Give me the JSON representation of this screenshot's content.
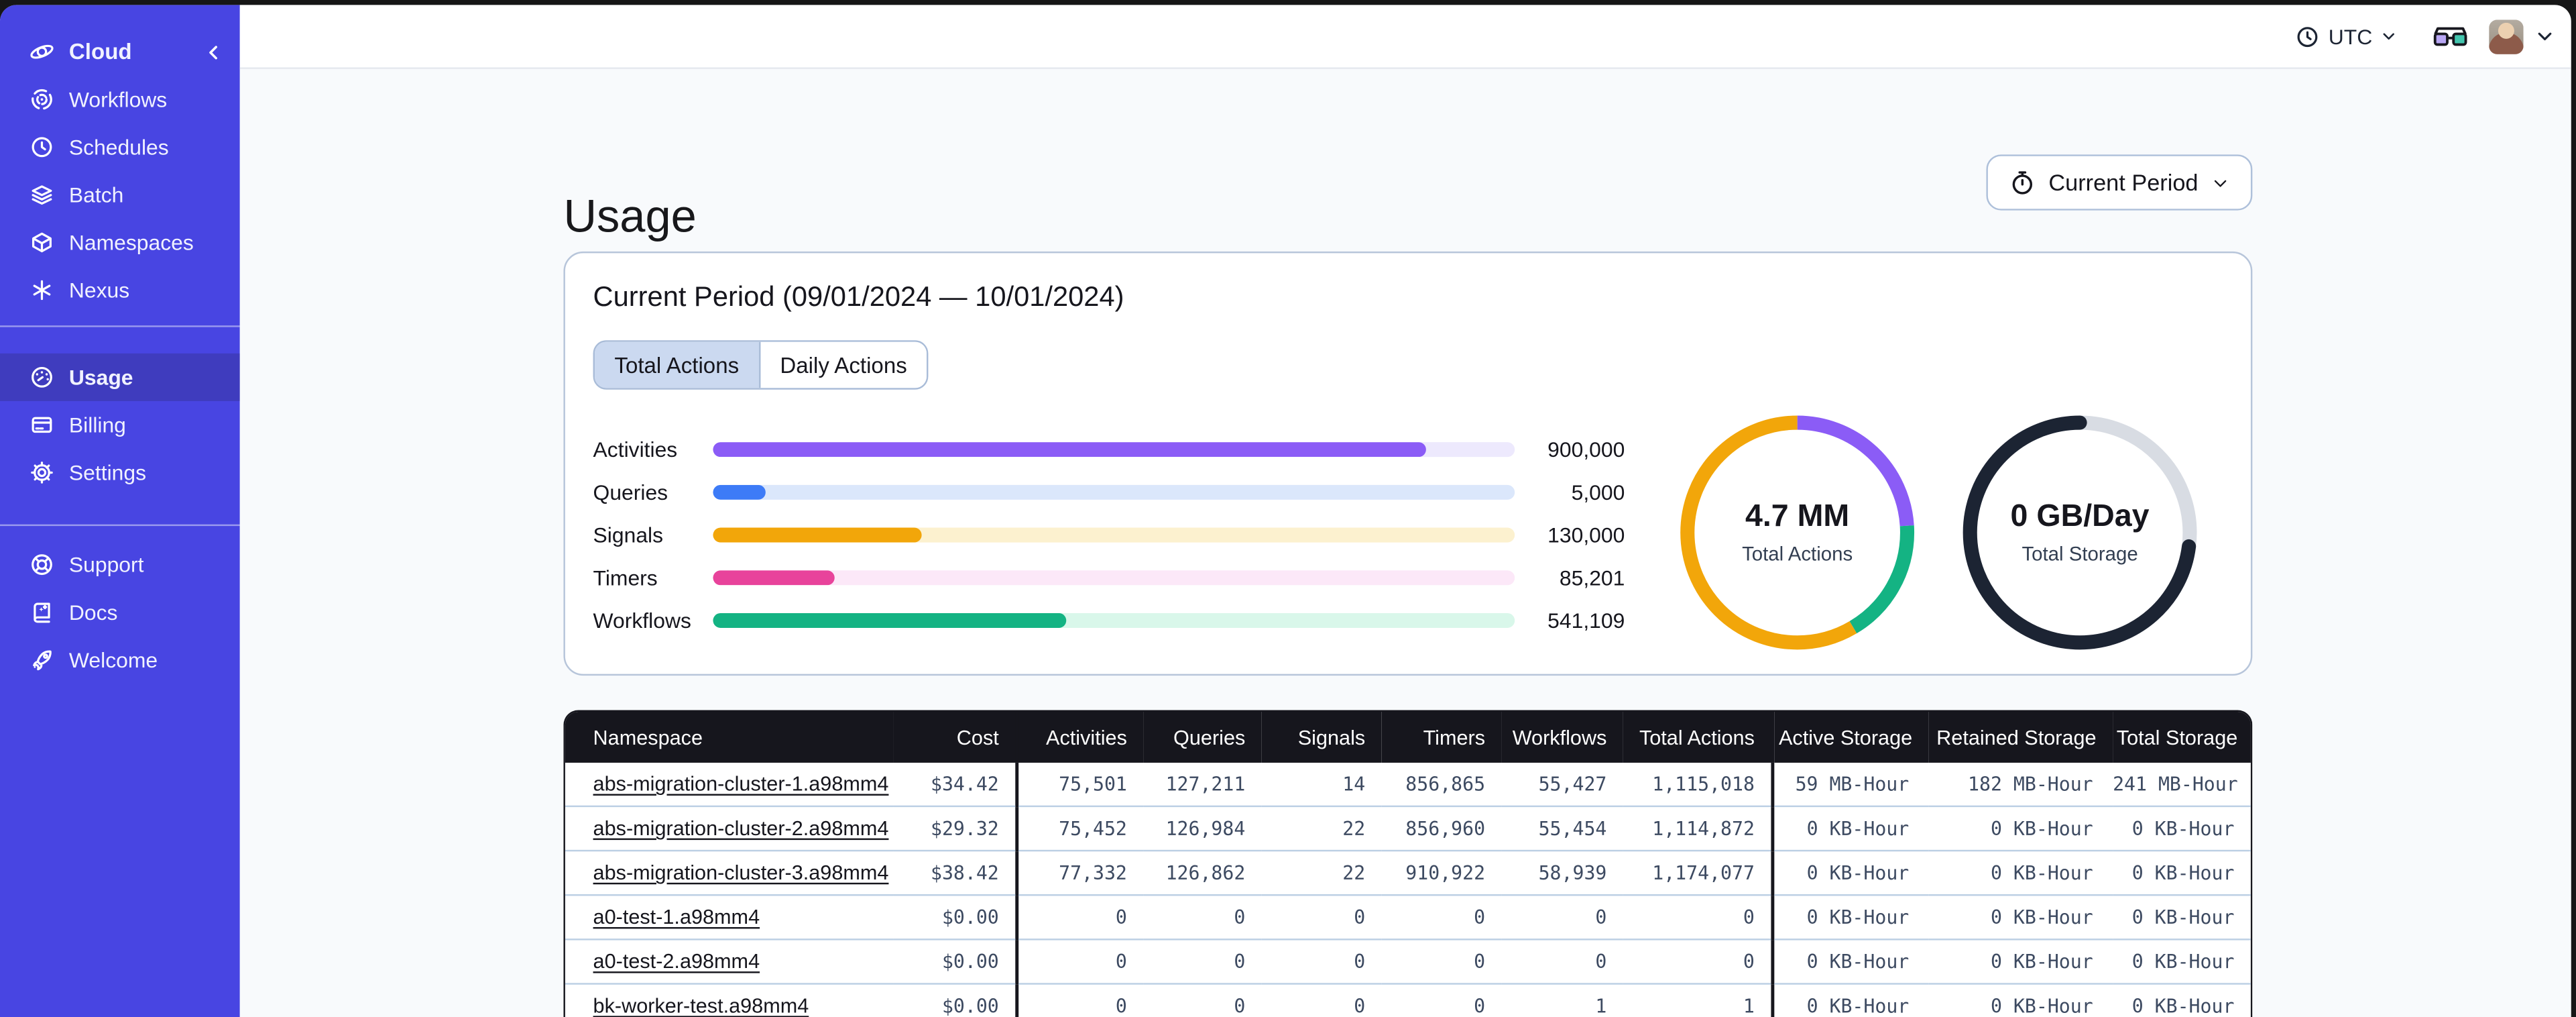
{
  "topbar": {
    "timezone_label": "UTC"
  },
  "sidebar": {
    "brand": {
      "label": "Cloud"
    },
    "nav_main": [
      {
        "icon": "workflows-icon",
        "label": "Workflows"
      },
      {
        "icon": "schedules-icon",
        "label": "Schedules"
      },
      {
        "icon": "batch-icon",
        "label": "Batch"
      },
      {
        "icon": "namespaces-icon",
        "label": "Namespaces"
      },
      {
        "icon": "nexus-icon",
        "label": "Nexus"
      }
    ],
    "nav_account": [
      {
        "icon": "usage-icon",
        "label": "Usage",
        "active": true
      },
      {
        "icon": "billing-icon",
        "label": "Billing",
        "active": false
      },
      {
        "icon": "settings-icon",
        "label": "Settings",
        "active": false
      }
    ],
    "nav_help": [
      {
        "icon": "support-icon",
        "label": "Support"
      },
      {
        "icon": "docs-icon",
        "label": "Docs"
      },
      {
        "icon": "welcome-icon",
        "label": "Welcome"
      }
    ],
    "colors": {
      "background": "#4845E2",
      "active_item": "#3F3CBE"
    }
  },
  "page": {
    "title": "Usage",
    "period_button_label": "Current Period"
  },
  "usage_card": {
    "title": "Current Period (09/01/2024 — 10/01/2024)",
    "tabs": [
      {
        "label": "Total Actions",
        "active": true
      },
      {
        "label": "Daily Actions",
        "active": false
      }
    ]
  },
  "chart_data": [
    {
      "type": "bar",
      "orientation": "horizontal",
      "categories": [
        "Activities",
        "Queries",
        "Signals",
        "Timers",
        "Workflows"
      ],
      "values": [
        900000,
        5000,
        130000,
        85201,
        541109
      ],
      "value_labels": [
        "900,000",
        "5,000",
        "130,000",
        "85,201",
        "541,109"
      ],
      "percent_filled": [
        89,
        6.5,
        26,
        15.2,
        44
      ],
      "bar_colors": [
        "#8B5CF6",
        "#3D7BF7",
        "#F2A60A",
        "#E8439B",
        "#14B383"
      ],
      "track_colors": [
        "#EDE9FD",
        "#DBE7FB",
        "#FCF1CF",
        "#FCE8F8",
        "#D9F7EA"
      ],
      "grid": false,
      "legend": false
    },
    {
      "type": "donut",
      "center_value": "4.7 MM",
      "center_label": "Total Actions",
      "segments": [
        {
          "label": "segment-purple",
          "fraction": 0.24,
          "color": "#8B5CF6"
        },
        {
          "label": "segment-green",
          "fraction": 0.175,
          "color": "#14B383"
        },
        {
          "label": "segment-orange",
          "fraction": 0.585,
          "color": "#F2A60A"
        }
      ]
    },
    {
      "type": "donut",
      "center_value": "0 GB/Day",
      "center_label": "Total Storage",
      "segments": [
        {
          "label": "segment-remaining",
          "fraction": 0.27,
          "color": "#D8DCE3"
        },
        {
          "label": "segment-used",
          "fraction": 0.73,
          "color": "#1C2433",
          "cap": "round"
        }
      ]
    }
  ],
  "table": {
    "columns": [
      "Namespace",
      "Cost",
      "Activities",
      "Queries",
      "Signals",
      "Timers",
      "Workflows",
      "Total Actions",
      "Active Storage",
      "Retained Storage",
      "Total Storage"
    ],
    "rows": [
      [
        "abs-migration-cluster-1.a98mm4",
        "$34.42",
        "75,501",
        "127,211",
        "14",
        "856,865",
        "55,427",
        "1,115,018",
        "59 MB-Hour",
        "182 MB-Hour",
        "241 MB-Hour"
      ],
      [
        "abs-migration-cluster-2.a98mm4",
        "$29.32",
        "75,452",
        "126,984",
        "22",
        "856,960",
        "55,454",
        "1,114,872",
        "0 KB-Hour",
        "0 KB-Hour",
        "0 KB-Hour"
      ],
      [
        "abs-migration-cluster-3.a98mm4",
        "$38.42",
        "77,332",
        "126,862",
        "22",
        "910,922",
        "58,939",
        "1,174,077",
        "0 KB-Hour",
        "0 KB-Hour",
        "0 KB-Hour"
      ],
      [
        "a0-test-1.a98mm4",
        "$0.00",
        "0",
        "0",
        "0",
        "0",
        "0",
        "0",
        "0 KB-Hour",
        "0 KB-Hour",
        "0 KB-Hour"
      ],
      [
        "a0-test-2.a98mm4",
        "$0.00",
        "0",
        "0",
        "0",
        "0",
        "0",
        "0",
        "0 KB-Hour",
        "0 KB-Hour",
        "0 KB-Hour"
      ],
      [
        "bk-worker-test.a98mm4",
        "$0.00",
        "0",
        "0",
        "0",
        "0",
        "1",
        "1",
        "0 KB-Hour",
        "0 KB-Hour",
        "0 KB-Hour"
      ]
    ]
  }
}
